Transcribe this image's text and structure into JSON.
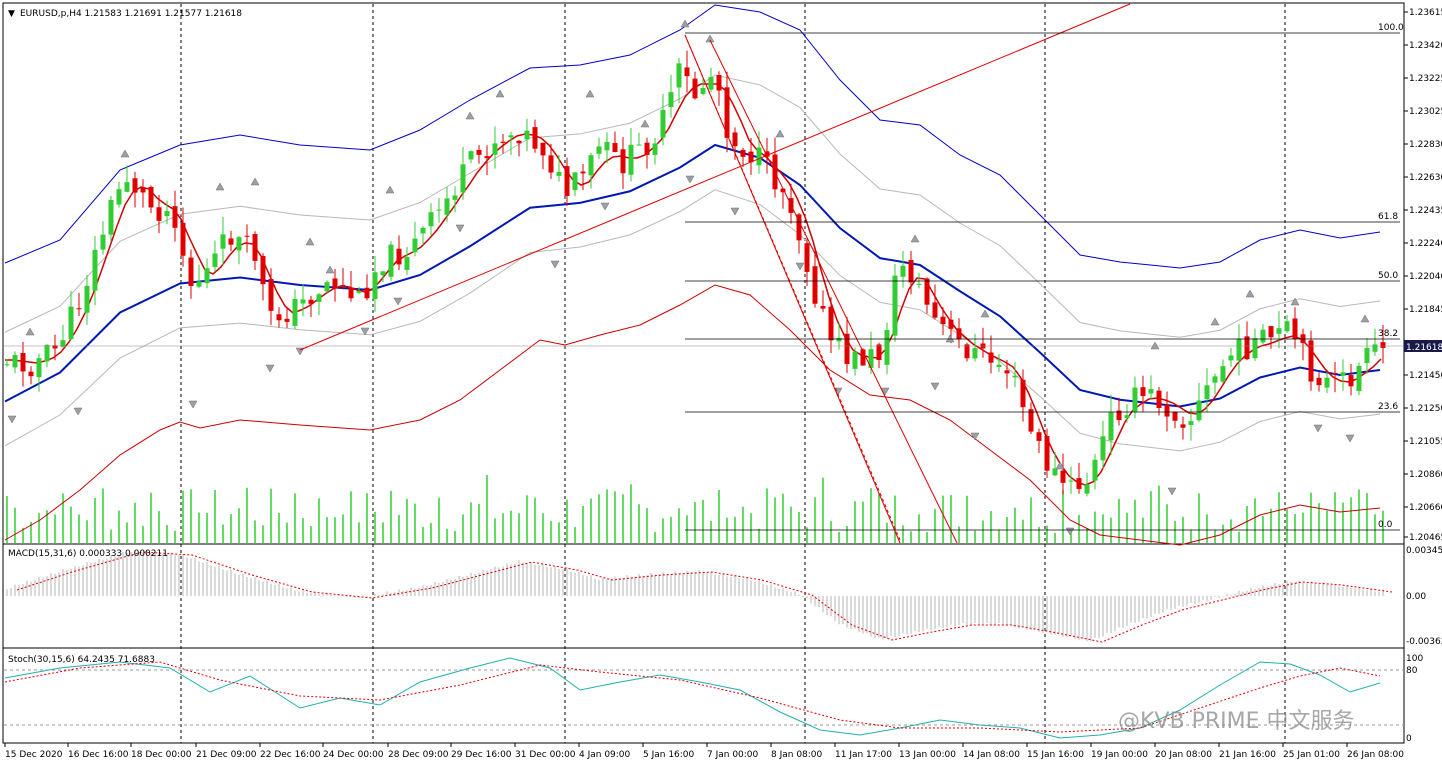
{
  "header": {
    "symbol_line": "EURUSD,p,H4  1.21583 1.21691 1.21577 1.21618"
  },
  "price_axis": {
    "ticks": [
      "1.23615",
      "1.23420",
      "1.23225",
      "1.23025",
      "1.22830",
      "1.22630",
      "1.22435",
      "1.22240",
      "1.22040",
      "1.21845",
      "1.21450",
      "1.21250",
      "1.21055",
      "1.20860",
      "1.20660",
      "1.20465"
    ],
    "current_price": "1.21618",
    "current_price_bg": "#1a1a4a"
  },
  "fibonacci": {
    "levels": [
      "100.0",
      "61.8",
      "50.0",
      "38.2",
      "23.6",
      "0.0"
    ]
  },
  "macd": {
    "label": "MACD(15,31,6) 0.000333 0.000211",
    "ticks": [
      "0.003455",
      "0.00",
      "-0.00362"
    ]
  },
  "stoch": {
    "label": "Stoch(30,15,6) 64.2435 71.6883",
    "ticks": [
      "100",
      "80",
      "0"
    ]
  },
  "time_axis": {
    "labels": [
      "15 Dec 2020",
      "16 Dec 16:00",
      "18 Dec 00:00",
      "21 Dec 09:00",
      "22 Dec 16:00",
      "24 Dec 00:00",
      "28 Dec 09:00",
      "29 Dec 16:00",
      "31 Dec 00:00",
      "4 Jan 09:00",
      "5 Jan 16:00",
      "7 Jan 00:00",
      "8 Jan 08:00",
      "11 Jan 17:00",
      "13 Jan 00:00",
      "14 Jan 08:00",
      "15 Jan 16:00",
      "19 Jan 00:00",
      "20 Jan 08:00",
      "21 Jan 16:00",
      "25 Jan 01:00",
      "26 Jan 08:00"
    ]
  },
  "watermark": "@KVB PRIME 中文服务",
  "colors": {
    "bull": "#32cd32",
    "bear": "#e00000",
    "bands_outer_upper": "#0000cc",
    "bands_outer_lower": "#cc0000",
    "ma_slow": "#0018b4",
    "ma_fast": "#d00000",
    "macd_hist": "#b4b4b4",
    "signal": "#e00000",
    "stoch_main": "#20b0b0"
  }
}
